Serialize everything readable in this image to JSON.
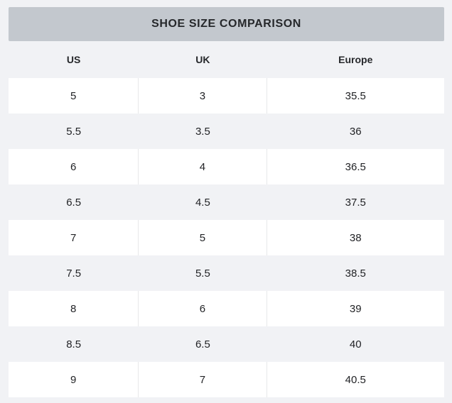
{
  "chart_data": {
    "type": "table",
    "title": "SHOE SIZE COMPARISON",
    "columns": [
      "US",
      "UK",
      "Europe"
    ],
    "rows": [
      [
        "5",
        "3",
        "35.5"
      ],
      [
        "5.5",
        "3.5",
        "36"
      ],
      [
        "6",
        "4",
        "36.5"
      ],
      [
        "6.5",
        "4.5",
        "37.5"
      ],
      [
        "7",
        "5",
        "38"
      ],
      [
        "7.5",
        "5.5",
        "38.5"
      ],
      [
        "8",
        "6",
        "39"
      ],
      [
        "8.5",
        "6.5",
        "40"
      ],
      [
        "9",
        "7",
        "40.5"
      ]
    ],
    "layout_hints": {
      "row_striping": "odd rows white with cell separators, even rows page background",
      "column_widths_pct": [
        29.9,
        29.4,
        40.7
      ]
    }
  },
  "colors": {
    "page_bg": "#f1f2f5",
    "bar_bg": "#c3c8ce",
    "row_white": "#ffffff",
    "separator": "#e7e8ea",
    "text": "#222326",
    "heading_text": "#26282b"
  }
}
